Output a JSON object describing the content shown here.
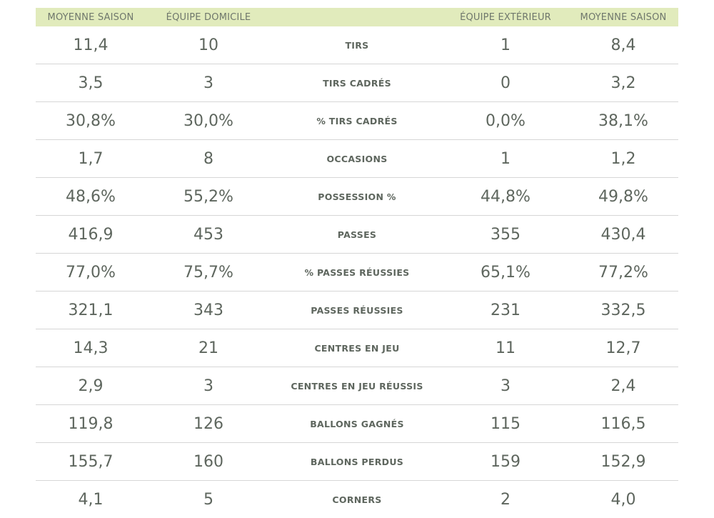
{
  "headers": {
    "home_season_avg": "MOYENNE SAISON",
    "home_team": "ÉQUIPE DOMICILE",
    "stat": "",
    "away_team": "ÉQUIPE EXTÉRIEUR",
    "away_season_avg": "MOYENNE SAISON"
  },
  "rows": [
    {
      "home_avg": "11,4",
      "home": "10",
      "label": "TIRS",
      "away": "1",
      "away_avg": "8,4"
    },
    {
      "home_avg": "3,5",
      "home": "3",
      "label": "TIRS CADRÉS",
      "away": "0",
      "away_avg": "3,2"
    },
    {
      "home_avg": "30,8%",
      "home": "30,0%",
      "label": "% TIRS CADRÉS",
      "away": "0,0%",
      "away_avg": "38,1%"
    },
    {
      "home_avg": "1,7",
      "home": "8",
      "label": "OCCASIONS",
      "away": "1",
      "away_avg": "1,2"
    },
    {
      "home_avg": "48,6%",
      "home": "55,2%",
      "label": "POSSESSION %",
      "away": "44,8%",
      "away_avg": "49,8%"
    },
    {
      "home_avg": "416,9",
      "home": "453",
      "label": "PASSES",
      "away": "355",
      "away_avg": "430,4"
    },
    {
      "home_avg": "77,0%",
      "home": "75,7%",
      "label": "% PASSES RÉUSSIES",
      "away": "65,1%",
      "away_avg": "77,2%"
    },
    {
      "home_avg": "321,1",
      "home": "343",
      "label": "PASSES RÉUSSIES",
      "away": "231",
      "away_avg": "332,5"
    },
    {
      "home_avg": "14,3",
      "home": "21",
      "label": "CENTRES EN JEU",
      "away": "11",
      "away_avg": "12,7"
    },
    {
      "home_avg": "2,9",
      "home": "3",
      "label": "CENTRES EN JEU RÉUSSIS",
      "away": "3",
      "away_avg": "2,4"
    },
    {
      "home_avg": "119,8",
      "home": "126",
      "label": "BALLONS GAGNÉS",
      "away": "115",
      "away_avg": "116,5"
    },
    {
      "home_avg": "155,7",
      "home": "160",
      "label": "BALLONS PERDUS",
      "away": "159",
      "away_avg": "152,9"
    },
    {
      "home_avg": "4,1",
      "home": "5",
      "label": "CORNERS",
      "away": "2",
      "away_avg": "4,0"
    }
  ]
}
